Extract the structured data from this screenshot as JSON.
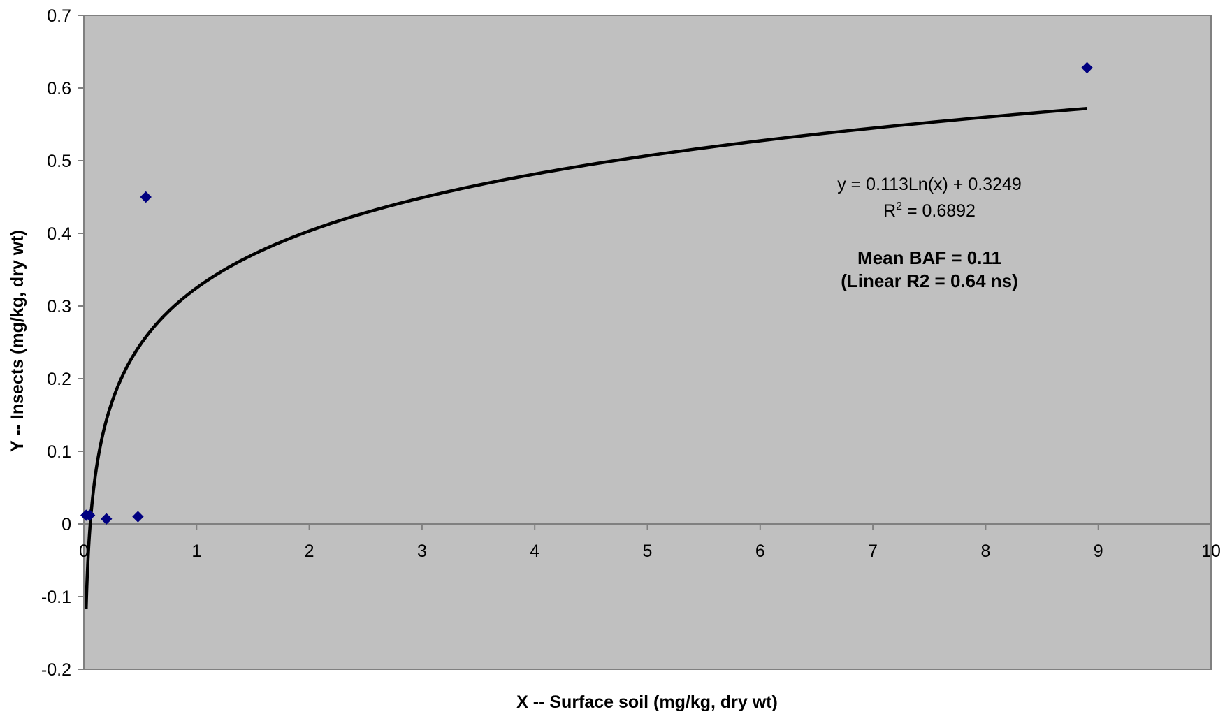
{
  "chart_data": {
    "type": "scatter",
    "xlabel": "X -- Surface soil (mg/kg, dry wt)",
    "ylabel": "Y -- Insects (mg/kg, dry wt)",
    "xlim": [
      0,
      10
    ],
    "ylim": [
      -0.2,
      0.7
    ],
    "x_ticks": [
      "0",
      "1",
      "2",
      "3",
      "4",
      "5",
      "6",
      "7",
      "8",
      "9",
      "10"
    ],
    "y_ticks": [
      "-0.2",
      "-0.1",
      "0",
      "0.1",
      "0.2",
      "0.3",
      "0.4",
      "0.5",
      "0.6",
      "0.7"
    ],
    "grid": false,
    "plot_background": "#c0c0c0",
    "series": [
      {
        "marker": "diamond",
        "color": "#000080",
        "points": [
          {
            "x": 0.02,
            "y": 0.012
          },
          {
            "x": 0.05,
            "y": 0.012
          },
          {
            "x": 0.2,
            "y": 0.007
          },
          {
            "x": 0.48,
            "y": 0.01
          },
          {
            "x": 0.55,
            "y": 0.45
          },
          {
            "x": 8.9,
            "y": 0.628
          }
        ]
      }
    ],
    "trendline": {
      "type": "logarithmic",
      "a": 0.113,
      "b": 0.3249,
      "x_range": [
        0.02,
        8.9
      ],
      "color": "#000000"
    },
    "annotations": {
      "equation": "y = 0.113Ln(x) + 0.3249",
      "r2_prefix": "R",
      "r2_sup": "2",
      "r2_value": " = 0.6892",
      "baf": "Mean BAF = 0.11",
      "linear": "(Linear R2 = 0.64 ns)"
    }
  }
}
